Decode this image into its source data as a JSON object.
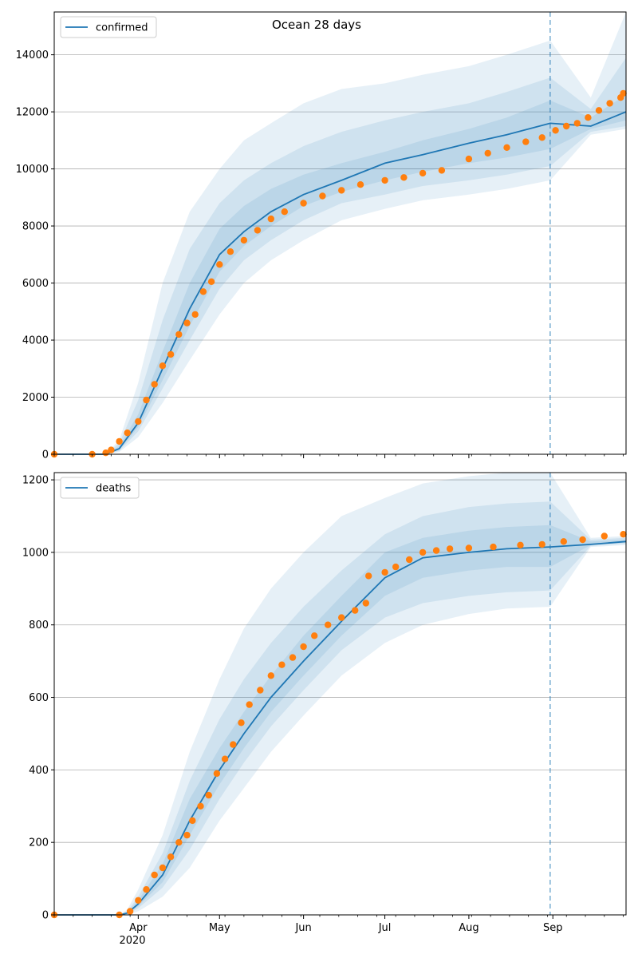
{
  "figure": {
    "title": "Ocean 28 days"
  },
  "colors": {
    "model": "#1f77b4",
    "observed": "#ff7f0e",
    "band": "#1f77b4",
    "grid": "#b0b0b0"
  },
  "x_axis": {
    "month_labels": [
      "Apr",
      "May",
      "Jun",
      "Jul",
      "Aug",
      "Sep"
    ],
    "month_dates": [
      "2020-04-01",
      "2020-05-01",
      "2020-06-01",
      "2020-07-01",
      "2020-08-01",
      "2020-09-01"
    ],
    "year_label": "2020",
    "range": [
      "2020-03-01",
      "2020-09-28"
    ],
    "forecast_start": "2020-08-31"
  },
  "chart_data": [
    {
      "type": "line",
      "title": "Ocean 28 days",
      "legend": {
        "label": "confirmed",
        "placement": "top-left"
      },
      "grid": true,
      "ylim": [
        0,
        15500
      ],
      "yticks": [
        0,
        2000,
        4000,
        6000,
        8000,
        10000,
        12000,
        14000
      ],
      "ytick_labels": [
        "0",
        "2000",
        "4000",
        "6000",
        "8000",
        "10000",
        "12000",
        "14000"
      ],
      "model_line": {
        "x": [
          "2020-03-01",
          "2020-03-20",
          "2020-03-25",
          "2020-04-01",
          "2020-04-10",
          "2020-04-20",
          "2020-05-01",
          "2020-05-10",
          "2020-05-20",
          "2020-06-01",
          "2020-06-15",
          "2020-07-01",
          "2020-07-15",
          "2020-08-01",
          "2020-08-15",
          "2020-08-31",
          "2020-09-15",
          "2020-09-28"
        ],
        "y": [
          0,
          0,
          200,
          1100,
          3000,
          5100,
          7000,
          7800,
          8500,
          9100,
          9600,
          10200,
          10500,
          10900,
          11200,
          11600,
          11500,
          12000
        ]
      },
      "bands": [
        {
          "x": [
            "2020-03-01",
            "2020-03-20",
            "2020-03-25",
            "2020-04-01",
            "2020-04-10",
            "2020-04-20",
            "2020-05-01",
            "2020-05-10",
            "2020-05-20",
            "2020-06-01",
            "2020-06-15",
            "2020-07-01",
            "2020-07-15",
            "2020-08-01",
            "2020-08-15",
            "2020-08-31",
            "2020-09-15",
            "2020-09-28"
          ],
          "low": [
            0,
            0,
            80,
            600,
            1800,
            3300,
            4900,
            6000,
            6800,
            7500,
            8200,
            8600,
            8900,
            9100,
            9300,
            9600,
            11200,
            11400
          ],
          "high": [
            0,
            0,
            500,
            2500,
            6000,
            8500,
            10000,
            11000,
            11600,
            12300,
            12800,
            13000,
            13300,
            13600,
            14000,
            14500,
            12500,
            15500
          ]
        },
        {
          "x": [
            "2020-03-01",
            "2020-03-20",
            "2020-03-25",
            "2020-04-01",
            "2020-04-10",
            "2020-04-20",
            "2020-05-01",
            "2020-05-10",
            "2020-05-20",
            "2020-06-01",
            "2020-06-15",
            "2020-07-01",
            "2020-07-15",
            "2020-08-01",
            "2020-08-15",
            "2020-08-31",
            "2020-09-15",
            "2020-09-28"
          ],
          "low": [
            0,
            0,
            120,
            800,
            2300,
            4000,
            5800,
            6800,
            7500,
            8200,
            8800,
            9100,
            9400,
            9600,
            9800,
            10100,
            11300,
            11500
          ],
          "high": [
            0,
            0,
            380,
            1900,
            4700,
            7200,
            8800,
            9600,
            10200,
            10800,
            11300,
            11700,
            12000,
            12300,
            12700,
            13200,
            12100,
            13900
          ]
        },
        {
          "x": [
            "2020-03-01",
            "2020-03-20",
            "2020-03-25",
            "2020-04-01",
            "2020-04-10",
            "2020-04-20",
            "2020-05-01",
            "2020-05-10",
            "2020-05-20",
            "2020-06-01",
            "2020-06-15",
            "2020-07-01",
            "2020-07-15",
            "2020-08-01",
            "2020-08-15",
            "2020-08-31",
            "2020-09-15",
            "2020-09-28"
          ],
          "low": [
            0,
            0,
            150,
            950,
            2600,
            4500,
            6400,
            7300,
            8000,
            8700,
            9200,
            9600,
            9900,
            10200,
            10400,
            10700,
            11400,
            11700
          ],
          "high": [
            0,
            0,
            280,
            1400,
            3600,
            6000,
            7900,
            8700,
            9300,
            9800,
            10200,
            10600,
            11000,
            11400,
            11800,
            12400,
            11800,
            12600
          ]
        }
      ],
      "observed": {
        "x": [
          "2020-03-01",
          "2020-03-15",
          "2020-03-20",
          "2020-03-22",
          "2020-03-25",
          "2020-03-28",
          "2020-04-01",
          "2020-04-04",
          "2020-04-07",
          "2020-04-10",
          "2020-04-13",
          "2020-04-16",
          "2020-04-19",
          "2020-04-22",
          "2020-04-25",
          "2020-04-28",
          "2020-05-01",
          "2020-05-05",
          "2020-05-10",
          "2020-05-15",
          "2020-05-20",
          "2020-05-25",
          "2020-06-01",
          "2020-06-08",
          "2020-06-15",
          "2020-06-22",
          "2020-07-01",
          "2020-07-08",
          "2020-07-15",
          "2020-07-22",
          "2020-08-01",
          "2020-08-08",
          "2020-08-15",
          "2020-08-22",
          "2020-08-28",
          "2020-09-02",
          "2020-09-06",
          "2020-09-10",
          "2020-09-14",
          "2020-09-18",
          "2020-09-22",
          "2020-09-26",
          "2020-09-27"
        ],
        "y": [
          0,
          0,
          50,
          150,
          450,
          750,
          1150,
          1900,
          2450,
          3100,
          3500,
          4200,
          4600,
          4900,
          5700,
          6050,
          6650,
          7100,
          7500,
          7850,
          8250,
          8500,
          8800,
          9050,
          9250,
          9450,
          9600,
          9700,
          9850,
          9950,
          10350,
          10550,
          10750,
          10950,
          11100,
          11350,
          11500,
          11600,
          11800,
          12050,
          12300,
          12500,
          12650
        ]
      }
    },
    {
      "type": "line",
      "legend": {
        "label": "deaths",
        "placement": "top-left"
      },
      "grid": true,
      "ylim": [
        0,
        1220
      ],
      "yticks": [
        0,
        200,
        400,
        600,
        800,
        1000,
        1200
      ],
      "ytick_labels": [
        "0",
        "200",
        "400",
        "600",
        "800",
        "1000",
        "1200"
      ],
      "model_line": {
        "x": [
          "2020-03-01",
          "2020-03-25",
          "2020-03-28",
          "2020-04-01",
          "2020-04-10",
          "2020-04-20",
          "2020-05-01",
          "2020-05-10",
          "2020-05-20",
          "2020-06-01",
          "2020-06-15",
          "2020-07-01",
          "2020-07-15",
          "2020-08-01",
          "2020-08-15",
          "2020-08-31",
          "2020-09-15",
          "2020-09-28"
        ],
        "y": [
          0,
          0,
          5,
          30,
          110,
          260,
          400,
          500,
          600,
          700,
          810,
          930,
          985,
          1000,
          1010,
          1015,
          1022,
          1030
        ]
      },
      "bands": [
        {
          "x": [
            "2020-03-01",
            "2020-03-25",
            "2020-03-28",
            "2020-04-01",
            "2020-04-10",
            "2020-04-20",
            "2020-05-01",
            "2020-05-10",
            "2020-05-20",
            "2020-06-01",
            "2020-06-15",
            "2020-07-01",
            "2020-07-15",
            "2020-08-01",
            "2020-08-15",
            "2020-08-31",
            "2020-09-15",
            "2020-09-28"
          ],
          "low": [
            0,
            0,
            0,
            10,
            50,
            130,
            260,
            350,
            450,
            550,
            660,
            750,
            800,
            830,
            845,
            850,
            1015,
            1020
          ],
          "high": [
            0,
            0,
            15,
            70,
            220,
            450,
            650,
            790,
            900,
            1000,
            1100,
            1150,
            1190,
            1210,
            1220,
            1220,
            1040,
            1045
          ]
        },
        {
          "x": [
            "2020-03-01",
            "2020-03-25",
            "2020-03-28",
            "2020-04-01",
            "2020-04-10",
            "2020-04-20",
            "2020-05-01",
            "2020-05-10",
            "2020-05-20",
            "2020-06-01",
            "2020-06-15",
            "2020-07-01",
            "2020-07-15",
            "2020-08-01",
            "2020-08-15",
            "2020-08-31",
            "2020-09-15",
            "2020-09-28"
          ],
          "low": [
            0,
            0,
            2,
            18,
            75,
            180,
            320,
            420,
            520,
            620,
            730,
            820,
            860,
            880,
            890,
            895,
            1018,
            1024
          ],
          "high": [
            0,
            0,
            10,
            50,
            170,
            370,
            540,
            650,
            750,
            850,
            950,
            1050,
            1100,
            1125,
            1135,
            1140,
            1035,
            1040
          ]
        },
        {
          "x": [
            "2020-03-01",
            "2020-03-25",
            "2020-03-28",
            "2020-04-01",
            "2020-04-10",
            "2020-04-20",
            "2020-05-01",
            "2020-05-10",
            "2020-05-20",
            "2020-06-01",
            "2020-06-15",
            "2020-07-01",
            "2020-07-15",
            "2020-08-01",
            "2020-08-15",
            "2020-08-31",
            "2020-09-15",
            "2020-09-28"
          ],
          "low": [
            0,
            0,
            3,
            24,
            90,
            220,
            360,
            460,
            560,
            660,
            770,
            880,
            930,
            950,
            960,
            960,
            1020,
            1027
          ],
          "high": [
            0,
            0,
            7,
            40,
            140,
            320,
            460,
            560,
            660,
            770,
            880,
            1000,
            1040,
            1060,
            1070,
            1075,
            1030,
            1035
          ]
        }
      ],
      "observed": {
        "x": [
          "2020-03-01",
          "2020-03-25",
          "2020-03-29",
          "2020-04-01",
          "2020-04-04",
          "2020-04-07",
          "2020-04-10",
          "2020-04-13",
          "2020-04-16",
          "2020-04-19",
          "2020-04-21",
          "2020-04-24",
          "2020-04-27",
          "2020-04-30",
          "2020-05-03",
          "2020-05-06",
          "2020-05-09",
          "2020-05-12",
          "2020-05-16",
          "2020-05-20",
          "2020-05-24",
          "2020-05-28",
          "2020-06-01",
          "2020-06-05",
          "2020-06-10",
          "2020-06-15",
          "2020-06-20",
          "2020-06-24",
          "2020-06-25",
          "2020-07-01",
          "2020-07-05",
          "2020-07-10",
          "2020-07-15",
          "2020-07-20",
          "2020-07-25",
          "2020-08-01",
          "2020-08-10",
          "2020-08-20",
          "2020-08-28",
          "2020-09-05",
          "2020-09-12",
          "2020-09-20",
          "2020-09-27"
        ],
        "y": [
          0,
          0,
          10,
          40,
          70,
          110,
          130,
          160,
          200,
          220,
          260,
          300,
          330,
          390,
          430,
          470,
          530,
          580,
          620,
          660,
          690,
          710,
          740,
          770,
          800,
          820,
          840,
          860,
          935,
          945,
          960,
          980,
          1000,
          1005,
          1010,
          1012,
          1015,
          1020,
          1022,
          1030,
          1035,
          1045,
          1050
        ]
      }
    }
  ]
}
